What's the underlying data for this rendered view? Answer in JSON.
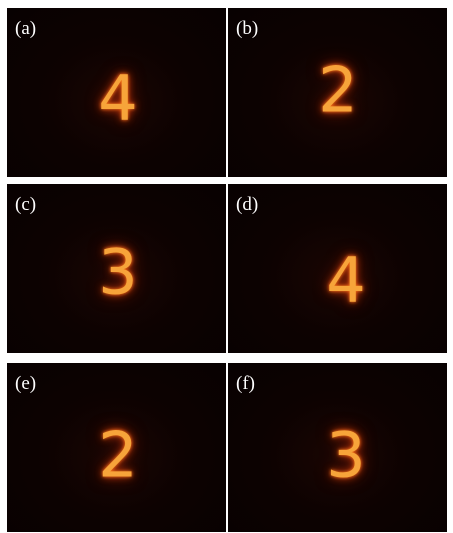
{
  "panels": [
    {
      "label": "(a)",
      "digit": "4"
    },
    {
      "label": "(b)",
      "digit": "2"
    },
    {
      "label": "(c)",
      "digit": "3"
    },
    {
      "label": "(d)",
      "digit": "4"
    },
    {
      "label": "(e)",
      "digit": "2"
    },
    {
      "label": "(f)",
      "digit": "3"
    }
  ]
}
